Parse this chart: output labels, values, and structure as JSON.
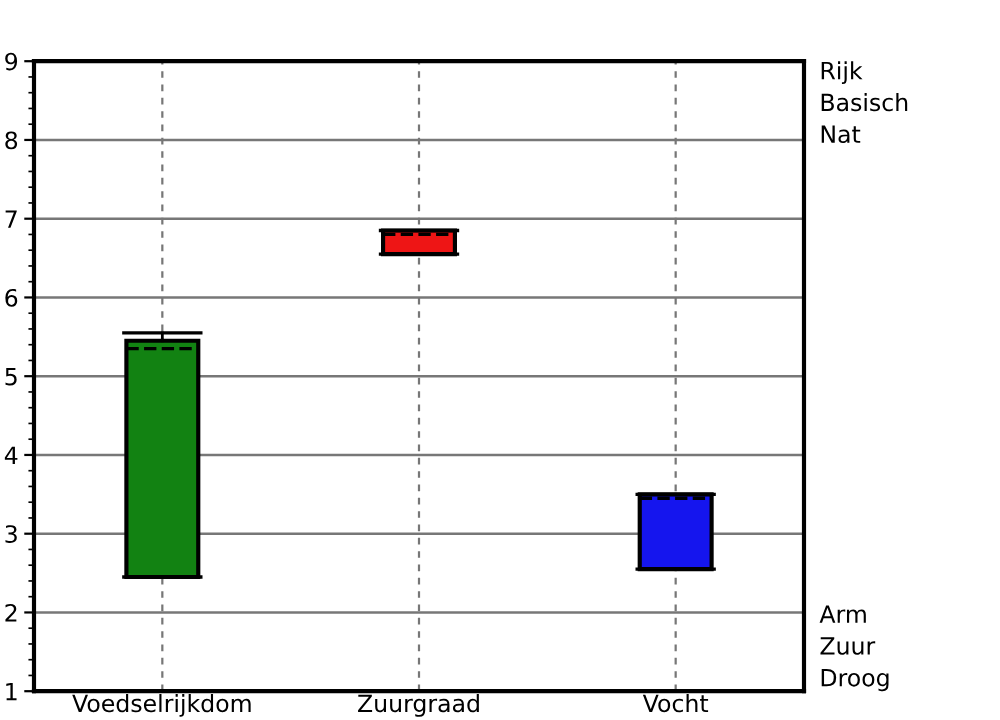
{
  "chart_data": {
    "type": "box",
    "categories": [
      "Voedselrijkdom",
      "Zuurgraad",
      "Vocht"
    ],
    "boxes": [
      {
        "low": 2.45,
        "q1": 2.45,
        "median": 5.35,
        "q3": 5.45,
        "high": 5.55
      },
      {
        "low": 6.55,
        "q1": 6.55,
        "median": 6.8,
        "q3": 6.85,
        "high": 6.85
      },
      {
        "low": 2.55,
        "q1": 2.55,
        "median": 3.45,
        "q3": 3.5,
        "high": 3.5
      }
    ],
    "colors": [
      "#128212",
      "#ee1515",
      "#1515ee"
    ],
    "ylim": [
      1,
      9
    ],
    "yticks": [
      1,
      2,
      3,
      4,
      5,
      6,
      7,
      8,
      9
    ],
    "grid": true,
    "annotations": [
      "Rijk\nBasisch\nNat",
      "Arm\nZuur\nDroog"
    ]
  }
}
